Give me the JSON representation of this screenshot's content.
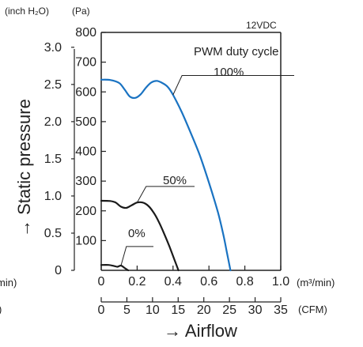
{
  "chart_data": {
    "type": "line",
    "annotation_top_right": "12VDC",
    "legend_title": "PWM duty cycle",
    "ylabel": "→ Static pressure",
    "xlabel": "→ Airflow",
    "axes": {
      "x_primary": {
        "unit": "(m³/min)",
        "range": [
          0,
          1.0
        ],
        "ticks": [
          "0",
          "0.2",
          "0.4",
          "0.6",
          "0.8",
          "1.0"
        ]
      },
      "x_secondary": {
        "unit": "(CFM)",
        "range": [
          0,
          35
        ],
        "ticks": [
          "0",
          "5",
          "10",
          "15",
          "20",
          "25",
          "30",
          "35"
        ]
      },
      "y_pa": {
        "unit": "(Pa)",
        "range": [
          0,
          800
        ],
        "ticks": [
          "100",
          "200",
          "300",
          "400",
          "500",
          "600",
          "700",
          "800"
        ]
      },
      "y_inch": {
        "unit": "(inch H₂O)",
        "range": [
          0,
          3.2
        ],
        "ticks": [
          "0",
          "0.5",
          "1.0",
          "1.5",
          "2.0",
          "2.5",
          "3.0"
        ]
      }
    },
    "clipped_left_labels": [
      "min)",
      ")"
    ],
    "grid": false,
    "series": [
      {
        "name": "100%",
        "color": "#1a73c2",
        "points": [
          [
            0,
            641
          ],
          [
            0.05,
            640
          ],
          [
            0.1,
            630
          ],
          [
            0.13,
            608
          ],
          [
            0.16,
            584
          ],
          [
            0.19,
            580
          ],
          [
            0.22,
            592
          ],
          [
            0.25,
            615
          ],
          [
            0.28,
            632
          ],
          [
            0.31,
            637
          ],
          [
            0.34,
            630
          ],
          [
            0.37,
            617
          ],
          [
            0.4,
            590
          ],
          [
            0.45,
            530
          ],
          [
            0.5,
            460
          ],
          [
            0.55,
            385
          ],
          [
            0.6,
            295
          ],
          [
            0.65,
            195
          ],
          [
            0.68,
            120
          ],
          [
            0.7,
            60
          ],
          [
            0.72,
            0
          ]
        ]
      },
      {
        "name": "50%",
        "color": "#1a1a1a",
        "points": [
          [
            0,
            234
          ],
          [
            0.05,
            233
          ],
          [
            0.08,
            228
          ],
          [
            0.11,
            214
          ],
          [
            0.14,
            210
          ],
          [
            0.17,
            219
          ],
          [
            0.2,
            228
          ],
          [
            0.23,
            228
          ],
          [
            0.26,
            218
          ],
          [
            0.29,
            196
          ],
          [
            0.32,
            164
          ],
          [
            0.35,
            124
          ],
          [
            0.38,
            80
          ],
          [
            0.41,
            32
          ],
          [
            0.43,
            0
          ]
        ]
      },
      {
        "name": "0%",
        "color": "#1a1a1a",
        "points": [
          [
            0,
            18
          ],
          [
            0.04,
            18
          ],
          [
            0.07,
            15
          ],
          [
            0.09,
            12
          ],
          [
            0.11,
            16
          ],
          [
            0.13,
            8
          ],
          [
            0.15,
            0
          ]
        ]
      }
    ]
  }
}
